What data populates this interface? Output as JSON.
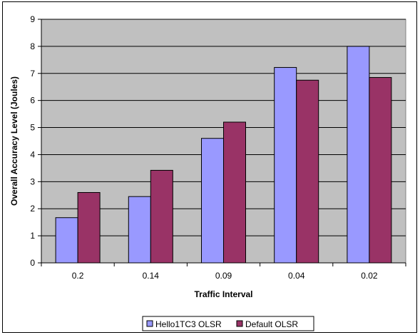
{
  "chart_data": {
    "type": "bar",
    "categories": [
      "0.2",
      "0.14",
      "0.09",
      "0.04",
      "0.02"
    ],
    "series": [
      {
        "name": "Hello1TC3 OLSR",
        "values": [
          1.67,
          2.45,
          4.6,
          7.22,
          8.0
        ],
        "color": "#9999ff"
      },
      {
        "name": "Default OLSR",
        "values": [
          2.6,
          3.42,
          5.2,
          6.75,
          6.85
        ],
        "color": "#993366"
      }
    ],
    "title": "",
    "xlabel": "Traffic Interval",
    "ylabel": "Overall Accuracy Level (Joules)",
    "ylim": [
      0,
      9
    ],
    "yticks": [
      "0",
      "1",
      "2",
      "3",
      "4",
      "5",
      "6",
      "7",
      "8",
      "9"
    ],
    "grid": true,
    "plot_background": "#c0c0c0",
    "legend": "bottom"
  }
}
